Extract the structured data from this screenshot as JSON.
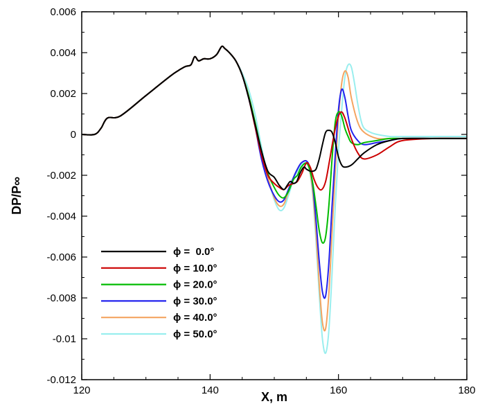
{
  "chart_data": {
    "type": "line",
    "xlabel": "X, m",
    "ylabel": "DP/P∞",
    "xlim": [
      120,
      180
    ],
    "ylim": [
      -0.012,
      0.006
    ],
    "xticks": [
      120,
      140,
      160,
      180
    ],
    "xtick_labels": [
      "120",
      "140",
      "160",
      "180"
    ],
    "yticks": [
      0.006,
      0.004,
      0.002,
      0,
      -0.002,
      -0.004,
      -0.006,
      -0.008,
      -0.01,
      -0.012
    ],
    "ytick_labels": [
      "0.006",
      "0.004",
      "0.002",
      "0",
      "-0.002",
      "-0.004",
      "-0.006",
      "-0.008",
      "-0.01",
      "-0.012"
    ],
    "grid": false,
    "legend_position": "lower-left",
    "series": [
      {
        "name": "ϕ =  0.0°",
        "color": "#000000",
        "x": [
          120,
          122,
          123,
          124,
          126,
          130,
          134,
          136,
          137,
          137.6,
          138.2,
          139,
          140,
          141,
          141.8,
          142.3,
          143,
          144,
          145,
          146,
          147,
          148,
          149,
          150,
          150.8,
          151.5,
          152,
          152.5,
          153,
          153.5,
          154,
          154.6,
          155,
          155.6,
          156,
          156.5,
          157,
          157.5,
          158,
          158.5,
          159,
          159.5,
          160,
          160.5,
          161,
          162,
          163,
          164,
          166,
          168,
          170,
          175,
          180
        ],
        "y": [
          0,
          0,
          0.0003,
          0.0008,
          0.0009,
          0.0019,
          0.0029,
          0.0033,
          0.0034,
          0.0038,
          0.0036,
          0.0037,
          0.0037,
          0.0039,
          0.0043,
          0.0042,
          0.004,
          0.0036,
          0.0029,
          0.0018,
          0.0005,
          -0.0008,
          -0.0018,
          -0.0021,
          -0.0025,
          -0.0027,
          -0.0025,
          -0.0023,
          -0.0024,
          -0.0023,
          -0.0019,
          -0.0016,
          -0.0017,
          -0.0018,
          -0.0018,
          -0.0017,
          -0.0012,
          -0.0005,
          0.0001,
          0.0002,
          0.0001,
          -0.0004,
          -0.0011,
          -0.0015,
          -0.0016,
          -0.0015,
          -0.0012,
          -0.0009,
          -0.0005,
          -0.0003,
          -0.0002,
          -0.0002,
          -0.0002
        ]
      },
      {
        "name": "ϕ = 10.0°",
        "color": "#cc0000",
        "x": [
          120,
          122,
          123,
          124,
          126,
          130,
          134,
          136,
          137,
          137.6,
          138.2,
          139,
          140,
          141,
          141.8,
          142.3,
          143,
          144,
          145,
          146,
          147,
          148,
          149,
          150,
          150.8,
          151.5,
          152.2,
          153,
          153.6,
          154.3,
          155,
          155.6,
          156.2,
          156.8,
          157.4,
          158,
          158.6,
          159.2,
          159.8,
          160.4,
          161,
          162,
          163,
          164,
          166,
          168,
          170,
          175,
          180
        ],
        "y": [
          0,
          0,
          0.0003,
          0.0008,
          0.0009,
          0.0019,
          0.0029,
          0.0033,
          0.0034,
          0.0038,
          0.0036,
          0.0037,
          0.0037,
          0.0039,
          0.0043,
          0.0042,
          0.004,
          0.0036,
          0.0029,
          0.0018,
          0.0004,
          -0.001,
          -0.002,
          -0.0024,
          -0.0026,
          -0.0027,
          -0.0025,
          -0.0024,
          -0.0023,
          -0.0019,
          -0.0014,
          -0.0016,
          -0.0022,
          -0.0026,
          -0.0027,
          -0.0023,
          -0.0013,
          -0.0002,
          0.0007,
          0.0011,
          0.0008,
          -0.0002,
          -0.0009,
          -0.0012,
          -0.001,
          -0.0006,
          -0.0003,
          -0.0002,
          -0.0002
        ]
      },
      {
        "name": "ϕ = 20.0°",
        "color": "#00bb00",
        "x": [
          120,
          122,
          123,
          124,
          126,
          130,
          134,
          136,
          137,
          137.6,
          138.2,
          139,
          140,
          141,
          141.8,
          142.3,
          143,
          144,
          145,
          146,
          147,
          148,
          149,
          150,
          150.8,
          151.5,
          152.2,
          153,
          153.6,
          154.2,
          155,
          155.5,
          156,
          156.5,
          157,
          157.5,
          158,
          158.5,
          159,
          159.5,
          160,
          160.5,
          161,
          161.5,
          162,
          163,
          164,
          166,
          168,
          170,
          175,
          180
        ],
        "y": [
          0,
          0,
          0.0003,
          0.0008,
          0.0009,
          0.0019,
          0.0029,
          0.0033,
          0.0034,
          0.0038,
          0.0036,
          0.0037,
          0.0037,
          0.0039,
          0.0043,
          0.0042,
          0.004,
          0.0036,
          0.0029,
          0.0019,
          0.0006,
          -0.0008,
          -0.0019,
          -0.0026,
          -0.003,
          -0.0031,
          -0.0028,
          -0.0022,
          -0.002,
          -0.0016,
          -0.0014,
          -0.0017,
          -0.0024,
          -0.0035,
          -0.0047,
          -0.0053,
          -0.005,
          -0.0035,
          -0.0012,
          0.0006,
          0.0011,
          0.0009,
          0.0003,
          -0.0001,
          -0.0004,
          -0.0005,
          -0.0004,
          -0.0003,
          -0.0002,
          -0.0002,
          -0.0002,
          -0.0002
        ]
      },
      {
        "name": "ϕ = 30.0°",
        "color": "#2222ee",
        "x": [
          120,
          122,
          123,
          124,
          126,
          130,
          134,
          136,
          137,
          137.6,
          138.2,
          139,
          140,
          141,
          141.8,
          142.3,
          143,
          144,
          145,
          146,
          147,
          148,
          149,
          150,
          150.8,
          151.5,
          152.2,
          153,
          153.6,
          154.2,
          155,
          155.5,
          156,
          156.5,
          157,
          157.5,
          158,
          158.5,
          159,
          159.5,
          160,
          160.5,
          161,
          161.5,
          162,
          163,
          164,
          166,
          168,
          170,
          175,
          180
        ],
        "y": [
          0,
          0,
          0.0003,
          0.0008,
          0.0009,
          0.0019,
          0.0029,
          0.0033,
          0.0034,
          0.0038,
          0.0036,
          0.0037,
          0.0037,
          0.0039,
          0.0043,
          0.0042,
          0.004,
          0.0036,
          0.0029,
          0.0018,
          0.0004,
          -0.0012,
          -0.0023,
          -0.003,
          -0.0033,
          -0.0032,
          -0.0027,
          -0.0021,
          -0.0017,
          -0.0014,
          -0.0013,
          -0.0016,
          -0.0025,
          -0.0042,
          -0.0062,
          -0.0077,
          -0.0079,
          -0.0063,
          -0.0035,
          -0.001,
          0.0012,
          0.0022,
          0.0018,
          0.0009,
          0.0002,
          -0.0003,
          -0.0005,
          -0.0004,
          -0.0003,
          -0.0002,
          -0.0002,
          -0.0002
        ]
      },
      {
        "name": "ϕ = 40.0°",
        "color": "#f4a460",
        "x": [
          120,
          122,
          123,
          124,
          126,
          130,
          134,
          136,
          137,
          137.6,
          138.2,
          139,
          140,
          141,
          141.8,
          142.3,
          143,
          144,
          145,
          146,
          147,
          148,
          149,
          150,
          150.8,
          151.5,
          152.2,
          153,
          153.6,
          154.2,
          155,
          155.5,
          156,
          156.5,
          157,
          157.5,
          158,
          158.5,
          159,
          159.5,
          160,
          160.5,
          161,
          161.5,
          162,
          163,
          164,
          166,
          168,
          170,
          175,
          180
        ],
        "y": [
          0,
          0,
          0.0003,
          0.0008,
          0.0009,
          0.0019,
          0.0029,
          0.0033,
          0.0034,
          0.0038,
          0.0036,
          0.0037,
          0.0037,
          0.0039,
          0.0043,
          0.0042,
          0.004,
          0.0036,
          0.0029,
          0.0019,
          0.0006,
          -0.0009,
          -0.0021,
          -0.0031,
          -0.0035,
          -0.0034,
          -0.0028,
          -0.0021,
          -0.0017,
          -0.0014,
          -0.0013,
          -0.0017,
          -0.0028,
          -0.0048,
          -0.0073,
          -0.0092,
          -0.0095,
          -0.0078,
          -0.0048,
          -0.0018,
          0.0008,
          0.0025,
          0.0031,
          0.0028,
          0.0018,
          0.0006,
          0.0001,
          -0.0002,
          -0.0002,
          -0.0002,
          -0.0002,
          -0.0002
        ]
      },
      {
        "name": "ϕ = 50.0°",
        "color": "#99eeee",
        "x": [
          120,
          122,
          123,
          124,
          126,
          130,
          134,
          136,
          137,
          137.6,
          138.2,
          139,
          140,
          141,
          141.8,
          142.3,
          143,
          144,
          145,
          146,
          147,
          148,
          149,
          150,
          150.8,
          151.5,
          152.2,
          153,
          153.6,
          154.2,
          155,
          155.5,
          156,
          156.5,
          157,
          157.5,
          158,
          158.5,
          159,
          159.5,
          160,
          160.5,
          161,
          161.5,
          162,
          162.5,
          163,
          163.5,
          164,
          165,
          166,
          168,
          170,
          175,
          180
        ],
        "y": [
          0,
          0,
          0.0003,
          0.0008,
          0.0009,
          0.0019,
          0.0029,
          0.0033,
          0.0034,
          0.0038,
          0.0036,
          0.0037,
          0.0037,
          0.0039,
          0.0043,
          0.0042,
          0.004,
          0.0036,
          0.003,
          0.0022,
          0.001,
          -0.0006,
          -0.0021,
          -0.0032,
          -0.0037,
          -0.0036,
          -0.003,
          -0.0022,
          -0.0018,
          -0.0015,
          -0.0014,
          -0.0018,
          -0.003,
          -0.0052,
          -0.0078,
          -0.01,
          -0.0107,
          -0.0096,
          -0.0068,
          -0.0035,
          -0.0008,
          0.0012,
          0.0028,
          0.0034,
          0.0033,
          0.0025,
          0.0015,
          0.0007,
          0.0003,
          0.0001,
          0,
          -0.0001,
          -0.0001,
          -0.0001,
          -0.0001
        ]
      }
    ]
  }
}
